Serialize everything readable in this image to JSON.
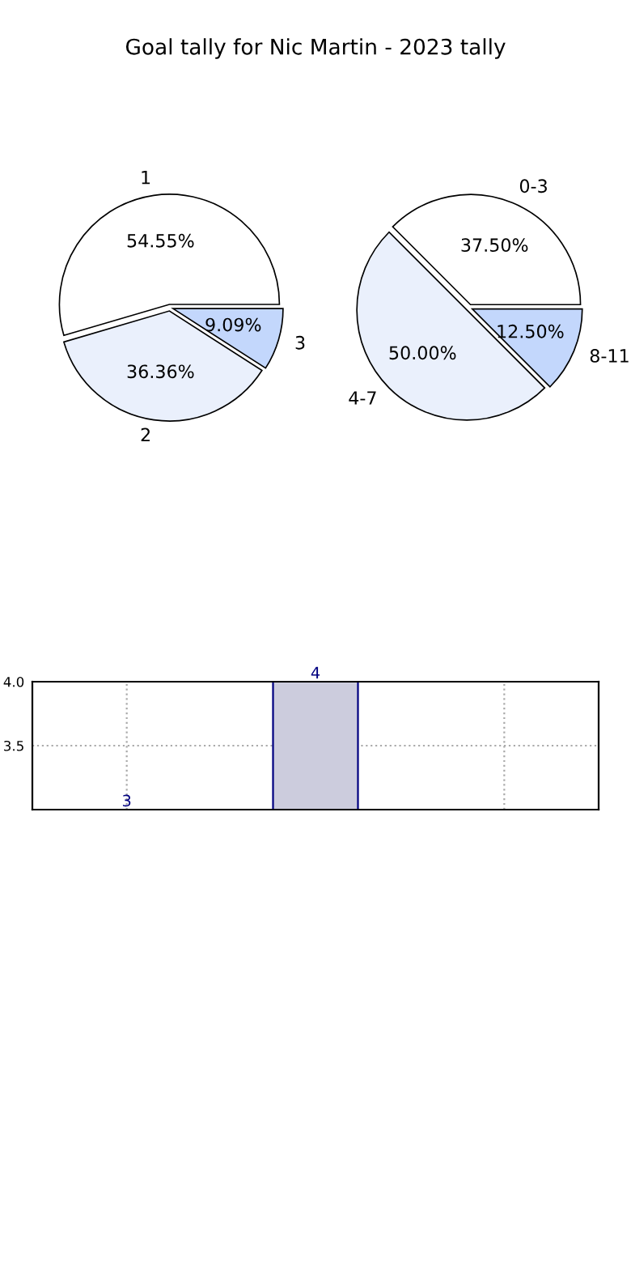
{
  "chart_data": [
    {
      "type": "pie",
      "title": "Goal tally for Nic Martin - 2023 tally",
      "categories": [
        "1",
        "2",
        "3"
      ],
      "values": [
        54.55,
        36.36,
        9.09
      ],
      "colors": [
        "#ffffff",
        "#eaf0fc",
        "#c3d7fc"
      ],
      "value_labels": [
        "54.55%",
        "36.36%",
        "9.09%"
      ]
    },
    {
      "type": "pie",
      "categories": [
        "0-3",
        "4-7",
        "8-11"
      ],
      "values": [
        37.5,
        50.0,
        12.5
      ],
      "colors": [
        "#ffffff",
        "#eaf0fc",
        "#c3d7fc"
      ],
      "value_labels": [
        "37.50%",
        "50.00%",
        "12.50%"
      ]
    },
    {
      "type": "bar",
      "categories": [
        null,
        null,
        null
      ],
      "values": [
        3,
        4,
        null
      ],
      "color": "#ccccdd",
      "ylim": [
        3.0,
        4.0
      ],
      "yticks": [
        3.5,
        {
          "value": 4.0,
          "label": "4.0"
        }
      ],
      "grid": true,
      "data_labels": true
    }
  ]
}
